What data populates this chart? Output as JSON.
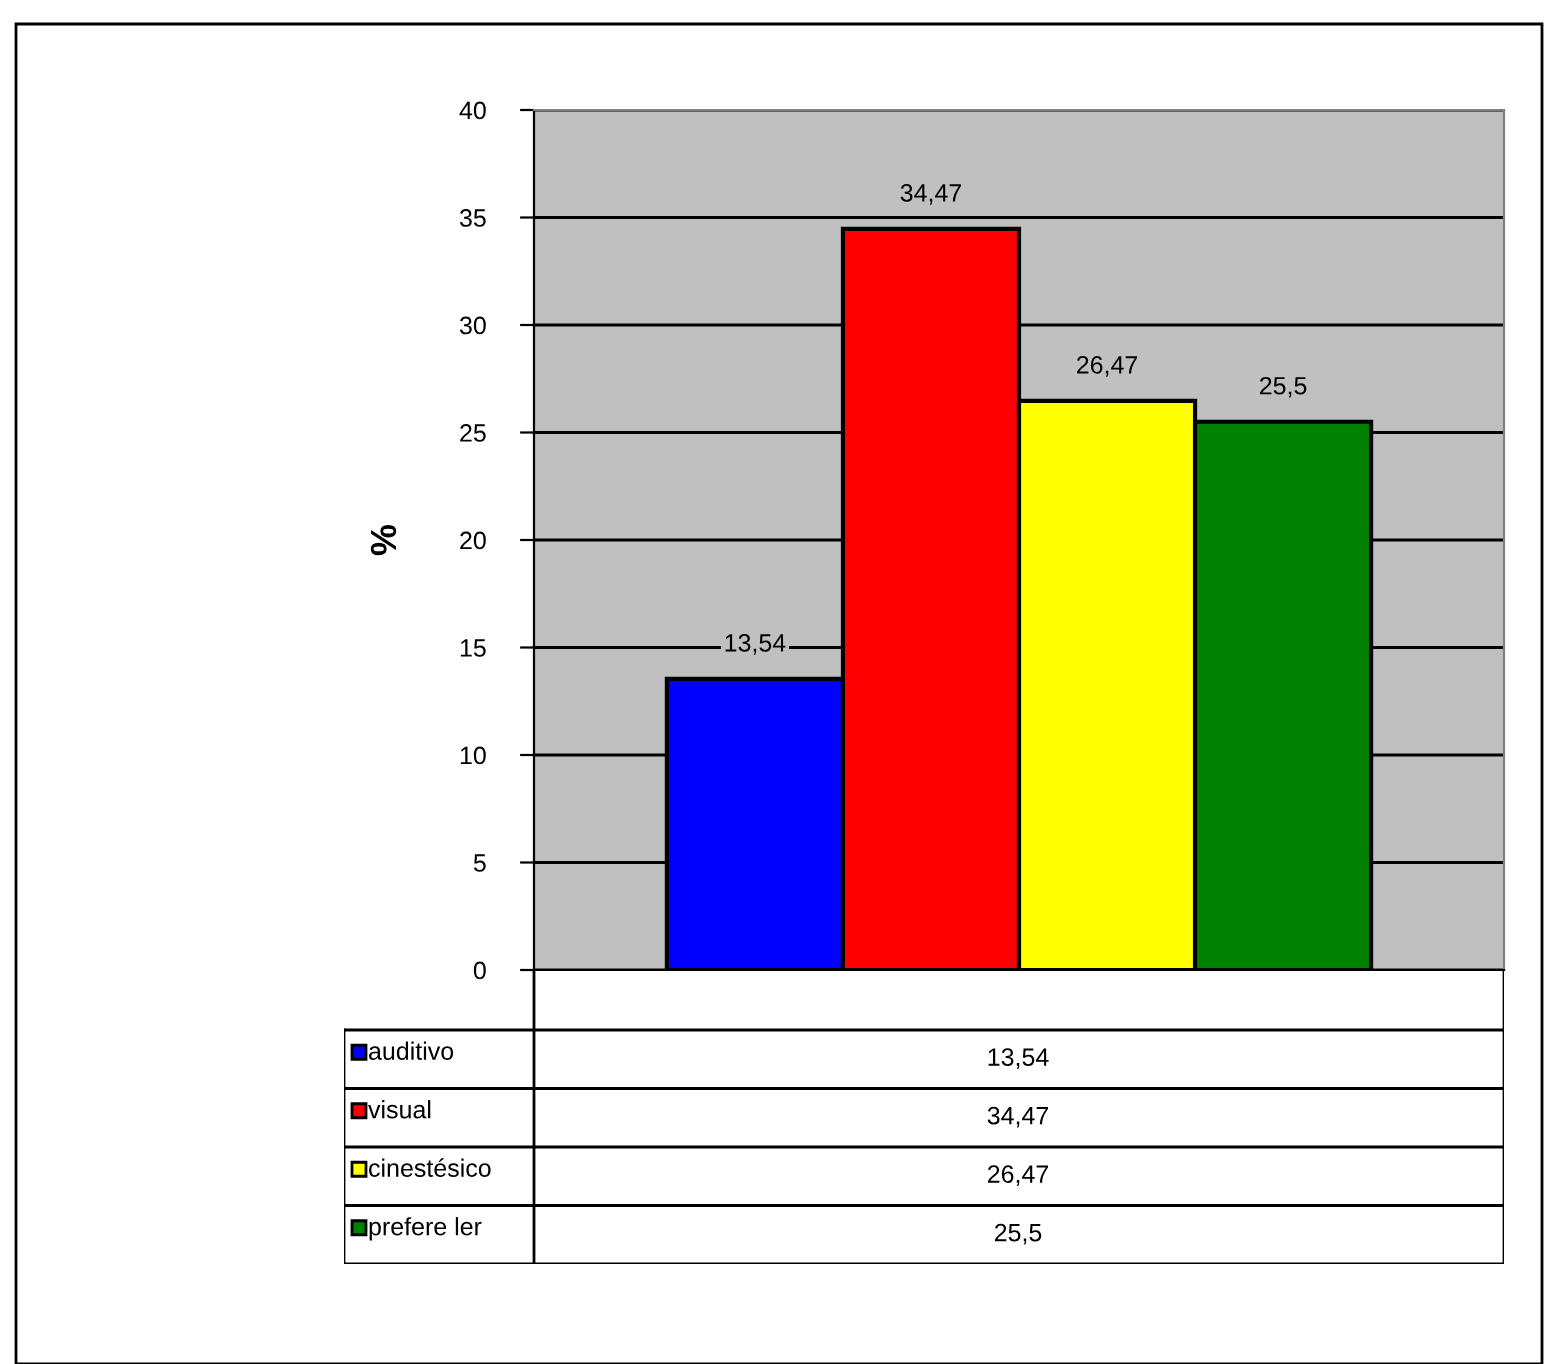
{
  "chart_data": {
    "type": "bar",
    "ylabel": "%",
    "categories": [
      null
    ],
    "series": [
      {
        "name": "auditivo",
        "color": "#0000ff",
        "values": [
          13.54
        ],
        "value_labels": [
          "13,54"
        ]
      },
      {
        "name": "visual",
        "color": "#ff0000",
        "values": [
          34.47
        ],
        "value_labels": [
          "34,47"
        ]
      },
      {
        "name": "cinestésico",
        "color": "#ffff00",
        "values": [
          26.47
        ],
        "value_labels": [
          "26,47"
        ]
      },
      {
        "name": "prefere ler",
        "color": "#008000",
        "values": [
          25.5
        ],
        "value_labels": [
          "25,5"
        ]
      }
    ],
    "ylim": [
      0,
      40
    ],
    "yticks": [
      0,
      5,
      10,
      15,
      20,
      25,
      30,
      35,
      40
    ],
    "grid": "y",
    "legend": "bottom"
  }
}
